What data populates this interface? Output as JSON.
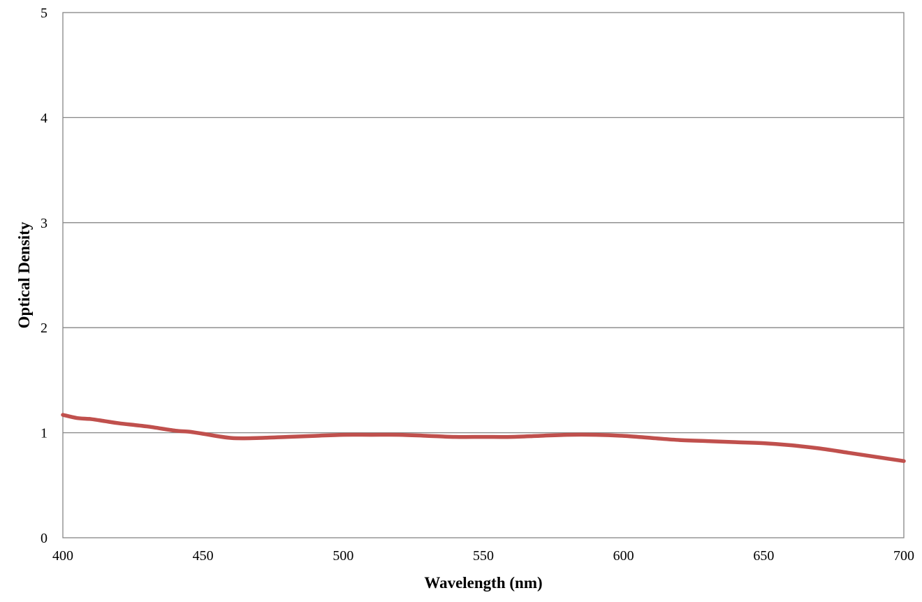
{
  "chart_data": {
    "type": "line",
    "title": "",
    "xlabel": "Wavelength (nm)",
    "ylabel": "Optical Density",
    "xlim": [
      400,
      700
    ],
    "ylim": [
      0,
      5
    ],
    "xticks": [
      400,
      450,
      500,
      550,
      600,
      650,
      700
    ],
    "yticks": [
      0,
      1,
      2,
      3,
      4,
      5
    ],
    "grid": "horizontal",
    "legend": "none",
    "series": [
      {
        "color": "#c0504d",
        "x": [
          400,
          405,
          410,
          415,
          420,
          430,
          440,
          445,
          450,
          460,
          470,
          480,
          490,
          500,
          510,
          520,
          530,
          540,
          550,
          560,
          570,
          580,
          590,
          600,
          610,
          620,
          630,
          640,
          650,
          660,
          670,
          680,
          690,
          700
        ],
        "y": [
          1.17,
          1.14,
          1.13,
          1.11,
          1.09,
          1.06,
          1.02,
          1.01,
          0.99,
          0.95,
          0.95,
          0.96,
          0.97,
          0.98,
          0.98,
          0.98,
          0.97,
          0.96,
          0.96,
          0.96,
          0.97,
          0.98,
          0.98,
          0.97,
          0.95,
          0.93,
          0.92,
          0.91,
          0.9,
          0.88,
          0.85,
          0.81,
          0.77,
          0.73
        ]
      }
    ]
  }
}
